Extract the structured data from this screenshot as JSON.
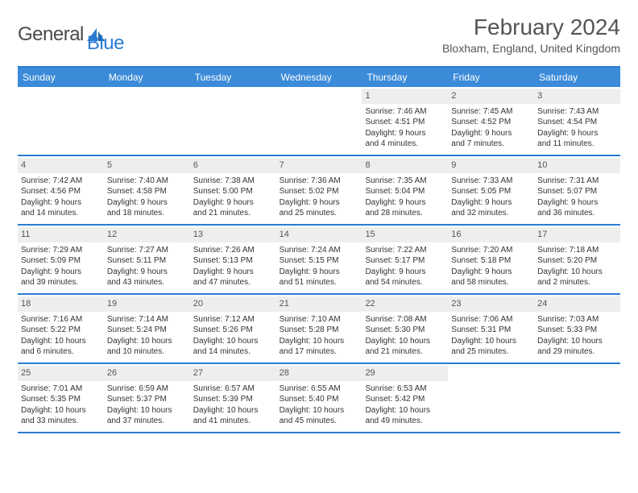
{
  "brand": {
    "part1": "General",
    "part2": "Blue"
  },
  "title": "February 2024",
  "location": "Bloxham, England, United Kingdom",
  "colors": {
    "header_bg": "#3b8bd9",
    "border": "#2b7cd3",
    "daynum_bg": "#eeeeee",
    "text": "#333333"
  },
  "day_headers": [
    "Sunday",
    "Monday",
    "Tuesday",
    "Wednesday",
    "Thursday",
    "Friday",
    "Saturday"
  ],
  "weeks": [
    [
      {
        "num": "",
        "sunrise": "",
        "sunset": "",
        "daylight1": "",
        "daylight2": "",
        "empty": true
      },
      {
        "num": "",
        "sunrise": "",
        "sunset": "",
        "daylight1": "",
        "daylight2": "",
        "empty": true
      },
      {
        "num": "",
        "sunrise": "",
        "sunset": "",
        "daylight1": "",
        "daylight2": "",
        "empty": true
      },
      {
        "num": "",
        "sunrise": "",
        "sunset": "",
        "daylight1": "",
        "daylight2": "",
        "empty": true
      },
      {
        "num": "1",
        "sunrise": "Sunrise: 7:46 AM",
        "sunset": "Sunset: 4:51 PM",
        "daylight1": "Daylight: 9 hours",
        "daylight2": "and 4 minutes."
      },
      {
        "num": "2",
        "sunrise": "Sunrise: 7:45 AM",
        "sunset": "Sunset: 4:52 PM",
        "daylight1": "Daylight: 9 hours",
        "daylight2": "and 7 minutes."
      },
      {
        "num": "3",
        "sunrise": "Sunrise: 7:43 AM",
        "sunset": "Sunset: 4:54 PM",
        "daylight1": "Daylight: 9 hours",
        "daylight2": "and 11 minutes."
      }
    ],
    [
      {
        "num": "4",
        "sunrise": "Sunrise: 7:42 AM",
        "sunset": "Sunset: 4:56 PM",
        "daylight1": "Daylight: 9 hours",
        "daylight2": "and 14 minutes."
      },
      {
        "num": "5",
        "sunrise": "Sunrise: 7:40 AM",
        "sunset": "Sunset: 4:58 PM",
        "daylight1": "Daylight: 9 hours",
        "daylight2": "and 18 minutes."
      },
      {
        "num": "6",
        "sunrise": "Sunrise: 7:38 AM",
        "sunset": "Sunset: 5:00 PM",
        "daylight1": "Daylight: 9 hours",
        "daylight2": "and 21 minutes."
      },
      {
        "num": "7",
        "sunrise": "Sunrise: 7:36 AM",
        "sunset": "Sunset: 5:02 PM",
        "daylight1": "Daylight: 9 hours",
        "daylight2": "and 25 minutes."
      },
      {
        "num": "8",
        "sunrise": "Sunrise: 7:35 AM",
        "sunset": "Sunset: 5:04 PM",
        "daylight1": "Daylight: 9 hours",
        "daylight2": "and 28 minutes."
      },
      {
        "num": "9",
        "sunrise": "Sunrise: 7:33 AM",
        "sunset": "Sunset: 5:05 PM",
        "daylight1": "Daylight: 9 hours",
        "daylight2": "and 32 minutes."
      },
      {
        "num": "10",
        "sunrise": "Sunrise: 7:31 AM",
        "sunset": "Sunset: 5:07 PM",
        "daylight1": "Daylight: 9 hours",
        "daylight2": "and 36 minutes."
      }
    ],
    [
      {
        "num": "11",
        "sunrise": "Sunrise: 7:29 AM",
        "sunset": "Sunset: 5:09 PM",
        "daylight1": "Daylight: 9 hours",
        "daylight2": "and 39 minutes."
      },
      {
        "num": "12",
        "sunrise": "Sunrise: 7:27 AM",
        "sunset": "Sunset: 5:11 PM",
        "daylight1": "Daylight: 9 hours",
        "daylight2": "and 43 minutes."
      },
      {
        "num": "13",
        "sunrise": "Sunrise: 7:26 AM",
        "sunset": "Sunset: 5:13 PM",
        "daylight1": "Daylight: 9 hours",
        "daylight2": "and 47 minutes."
      },
      {
        "num": "14",
        "sunrise": "Sunrise: 7:24 AM",
        "sunset": "Sunset: 5:15 PM",
        "daylight1": "Daylight: 9 hours",
        "daylight2": "and 51 minutes."
      },
      {
        "num": "15",
        "sunrise": "Sunrise: 7:22 AM",
        "sunset": "Sunset: 5:17 PM",
        "daylight1": "Daylight: 9 hours",
        "daylight2": "and 54 minutes."
      },
      {
        "num": "16",
        "sunrise": "Sunrise: 7:20 AM",
        "sunset": "Sunset: 5:18 PM",
        "daylight1": "Daylight: 9 hours",
        "daylight2": "and 58 minutes."
      },
      {
        "num": "17",
        "sunrise": "Sunrise: 7:18 AM",
        "sunset": "Sunset: 5:20 PM",
        "daylight1": "Daylight: 10 hours",
        "daylight2": "and 2 minutes."
      }
    ],
    [
      {
        "num": "18",
        "sunrise": "Sunrise: 7:16 AM",
        "sunset": "Sunset: 5:22 PM",
        "daylight1": "Daylight: 10 hours",
        "daylight2": "and 6 minutes."
      },
      {
        "num": "19",
        "sunrise": "Sunrise: 7:14 AM",
        "sunset": "Sunset: 5:24 PM",
        "daylight1": "Daylight: 10 hours",
        "daylight2": "and 10 minutes."
      },
      {
        "num": "20",
        "sunrise": "Sunrise: 7:12 AM",
        "sunset": "Sunset: 5:26 PM",
        "daylight1": "Daylight: 10 hours",
        "daylight2": "and 14 minutes."
      },
      {
        "num": "21",
        "sunrise": "Sunrise: 7:10 AM",
        "sunset": "Sunset: 5:28 PM",
        "daylight1": "Daylight: 10 hours",
        "daylight2": "and 17 minutes."
      },
      {
        "num": "22",
        "sunrise": "Sunrise: 7:08 AM",
        "sunset": "Sunset: 5:30 PM",
        "daylight1": "Daylight: 10 hours",
        "daylight2": "and 21 minutes."
      },
      {
        "num": "23",
        "sunrise": "Sunrise: 7:06 AM",
        "sunset": "Sunset: 5:31 PM",
        "daylight1": "Daylight: 10 hours",
        "daylight2": "and 25 minutes."
      },
      {
        "num": "24",
        "sunrise": "Sunrise: 7:03 AM",
        "sunset": "Sunset: 5:33 PM",
        "daylight1": "Daylight: 10 hours",
        "daylight2": "and 29 minutes."
      }
    ],
    [
      {
        "num": "25",
        "sunrise": "Sunrise: 7:01 AM",
        "sunset": "Sunset: 5:35 PM",
        "daylight1": "Daylight: 10 hours",
        "daylight2": "and 33 minutes."
      },
      {
        "num": "26",
        "sunrise": "Sunrise: 6:59 AM",
        "sunset": "Sunset: 5:37 PM",
        "daylight1": "Daylight: 10 hours",
        "daylight2": "and 37 minutes."
      },
      {
        "num": "27",
        "sunrise": "Sunrise: 6:57 AM",
        "sunset": "Sunset: 5:39 PM",
        "daylight1": "Daylight: 10 hours",
        "daylight2": "and 41 minutes."
      },
      {
        "num": "28",
        "sunrise": "Sunrise: 6:55 AM",
        "sunset": "Sunset: 5:40 PM",
        "daylight1": "Daylight: 10 hours",
        "daylight2": "and 45 minutes."
      },
      {
        "num": "29",
        "sunrise": "Sunrise: 6:53 AM",
        "sunset": "Sunset: 5:42 PM",
        "daylight1": "Daylight: 10 hours",
        "daylight2": "and 49 minutes."
      },
      {
        "num": "",
        "sunrise": "",
        "sunset": "",
        "daylight1": "",
        "daylight2": "",
        "empty": true
      },
      {
        "num": "",
        "sunrise": "",
        "sunset": "",
        "daylight1": "",
        "daylight2": "",
        "empty": true
      }
    ]
  ]
}
